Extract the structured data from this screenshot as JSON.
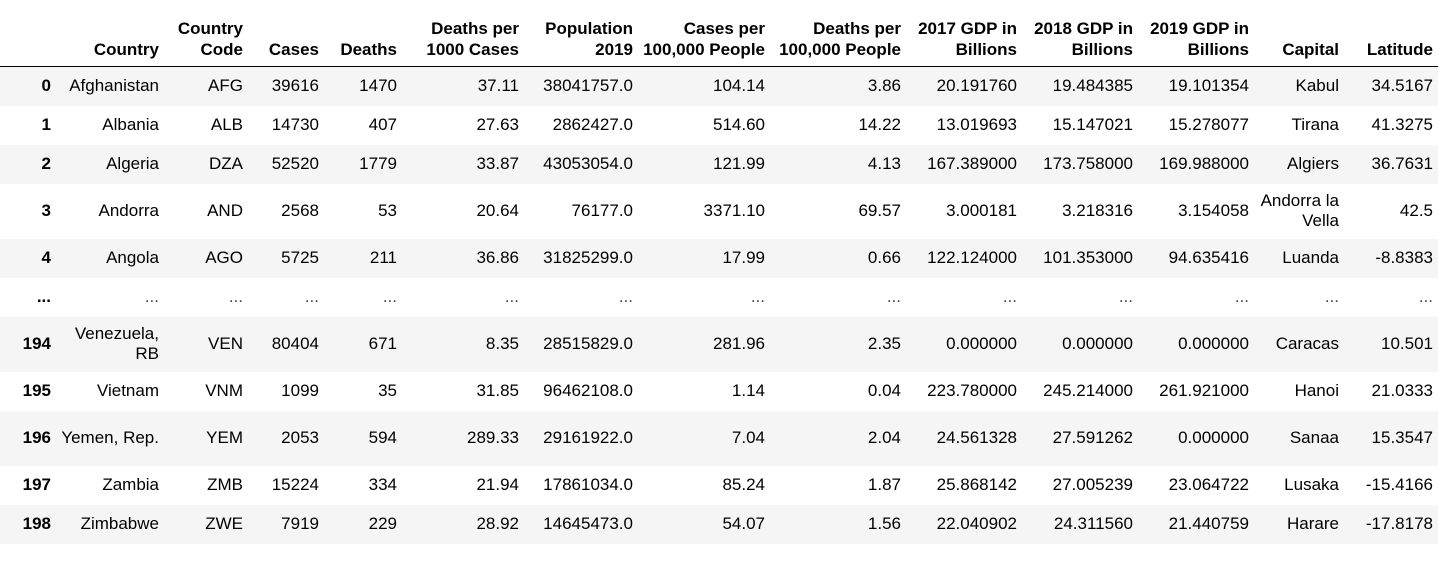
{
  "table": {
    "columns": [
      "",
      "Country",
      "Country Code",
      "Cases",
      "Deaths",
      "Deaths per 1000 Cases",
      "Population 2019",
      "Cases per 100,000 People",
      "Deaths per 100,000 People",
      "2017 GDP in Billions",
      "2018 GDP in Billions",
      "2019 GDP in Billions",
      "Capital",
      "Latitude"
    ],
    "rows": [
      {
        "index": "0",
        "cells": [
          "Afghanistan",
          "AFG",
          "39616",
          "1470",
          "37.11",
          "38041757.0",
          "104.14",
          "3.86",
          "20.191760",
          "19.484385",
          "19.101354",
          "Kabul",
          "34.5167"
        ]
      },
      {
        "index": "1",
        "cells": [
          "Albania",
          "ALB",
          "14730",
          "407",
          "27.63",
          "2862427.0",
          "514.60",
          "14.22",
          "13.019693",
          "15.147021",
          "15.278077",
          "Tirana",
          "41.3275"
        ]
      },
      {
        "index": "2",
        "cells": [
          "Algeria",
          "DZA",
          "52520",
          "1779",
          "33.87",
          "43053054.0",
          "121.99",
          "4.13",
          "167.389000",
          "173.758000",
          "169.988000",
          "Algiers",
          "36.7631"
        ]
      },
      {
        "index": "3",
        "cells": [
          "Andorra",
          "AND",
          "2568",
          "53",
          "20.64",
          "76177.0",
          "3371.10",
          "69.57",
          "3.000181",
          "3.218316",
          "3.154058",
          "Andorra la Vella",
          "42.5"
        ]
      },
      {
        "index": "4",
        "cells": [
          "Angola",
          "AGO",
          "5725",
          "211",
          "36.86",
          "31825299.0",
          "17.99",
          "0.66",
          "122.124000",
          "101.353000",
          "94.635416",
          "Luanda",
          "-8.8383"
        ]
      },
      {
        "index": "...",
        "cells": [
          "...",
          "...",
          "...",
          "...",
          "...",
          "...",
          "...",
          "...",
          "...",
          "...",
          "...",
          "...",
          "..."
        ]
      },
      {
        "index": "194",
        "cells": [
          "Venezuela, RB",
          "VEN",
          "80404",
          "671",
          "8.35",
          "28515829.0",
          "281.96",
          "2.35",
          "0.000000",
          "0.000000",
          "0.000000",
          "Caracas",
          "10.501"
        ]
      },
      {
        "index": "195",
        "cells": [
          "Vietnam",
          "VNM",
          "1099",
          "35",
          "31.85",
          "96462108.0",
          "1.14",
          "0.04",
          "223.780000",
          "245.214000",
          "261.921000",
          "Hanoi",
          "21.0333"
        ]
      },
      {
        "index": "196",
        "cells": [
          "Yemen, Rep.",
          "YEM",
          "2053",
          "594",
          "289.33",
          "29161922.0",
          "7.04",
          "2.04",
          "24.561328",
          "27.591262",
          "0.000000",
          "Sanaa",
          "15.3547"
        ]
      },
      {
        "index": "197",
        "cells": [
          "Zambia",
          "ZMB",
          "15224",
          "334",
          "21.94",
          "17861034.0",
          "85.24",
          "1.87",
          "25.868142",
          "27.005239",
          "23.064722",
          "Lusaka",
          "-15.4166"
        ]
      },
      {
        "index": "198",
        "cells": [
          "Zimbabwe",
          "ZWE",
          "7919",
          "229",
          "28.92",
          "14645473.0",
          "54.07",
          "1.56",
          "22.040902",
          "24.311560",
          "21.440759",
          "Harare",
          "-17.8178"
        ]
      }
    ]
  }
}
